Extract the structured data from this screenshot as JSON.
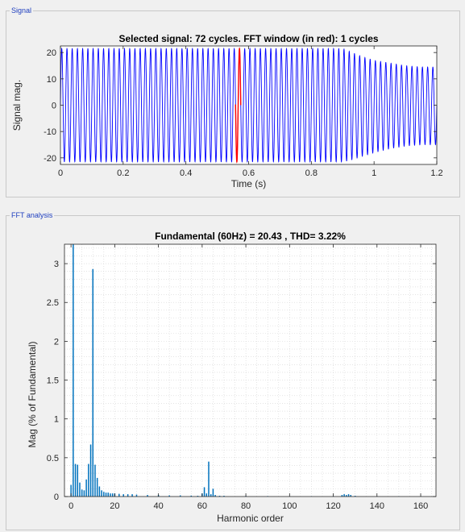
{
  "signal_panel": {
    "legend": "Signal"
  },
  "fft_panel": {
    "legend": "FFT analysis"
  },
  "chart_data": [
    {
      "type": "line",
      "title": "Selected signal: 72 cycles. FFT window (in red): 1 cycles",
      "xlabel": "Time (s)",
      "ylabel": "Signal mag.",
      "xlim": [
        0,
        1.2
      ],
      "ylim": [
        -22.5,
        22.5
      ],
      "xticks": [
        0,
        0.2,
        0.4,
        0.6,
        0.8,
        1,
        1.2
      ],
      "xtick_labels": [
        "0",
        "0.2",
        "0.4",
        "0.6",
        "0.8",
        "1",
        "1.2"
      ],
      "yticks": [
        -20,
        -10,
        0,
        10,
        20
      ],
      "ytick_labels": [
        "-20",
        "-10",
        "0",
        "10",
        "20"
      ],
      "grid": false,
      "series": [
        {
          "color": "#0000ff",
          "frequency_hz": 60,
          "duration_s": 1.2,
          "envelope": {
            "t": [
              0,
              0.9,
              0.92,
              0.96,
              1.0,
              1.05,
              1.1,
              1.15,
              1.2
            ],
            "upper": [
              21.5,
              21.5,
              20.5,
              18.5,
              17.0,
              16.0,
              15.0,
              14.5,
              14.5
            ],
            "lower": [
              -21.5,
              -21.5,
              -21.0,
              -19.5,
              -18.0,
              -16.5,
              -15.5,
              -15.0,
              -15.0
            ]
          }
        },
        {
          "color": "#ff0000",
          "t_start": 0.5583,
          "t_end": 0.575,
          "frequency_hz": 60
        }
      ]
    },
    {
      "type": "bar",
      "title": "Fundamental (60Hz) = 20.43 , THD= 3.22%",
      "xlabel": "Harmonic order",
      "ylabel": "Mag (% of Fundamental)",
      "xlim": [
        -3,
        167
      ],
      "ylim": [
        0,
        3.25
      ],
      "xticks": [
        0,
        20,
        40,
        60,
        80,
        100,
        120,
        140,
        160
      ],
      "xtick_labels": [
        "0",
        "20",
        "40",
        "60",
        "80",
        "100",
        "120",
        "140",
        "160"
      ],
      "yticks": [
        0,
        0.5,
        1,
        1.5,
        2,
        2.5,
        3
      ],
      "ytick_labels": [
        "0",
        "0.5",
        "1",
        "1.5",
        "2",
        "2.5",
        "3"
      ],
      "grid": true,
      "bar_color": "#0072bd",
      "x": [
        0,
        1,
        2,
        3,
        4,
        5,
        6,
        7,
        8,
        9,
        10,
        11,
        12,
        13,
        14,
        15,
        16,
        17,
        18,
        19,
        20,
        22,
        24,
        26,
        28,
        30,
        35,
        40,
        45,
        50,
        55,
        58,
        60,
        61,
        62,
        63,
        64,
        65,
        66,
        68,
        70,
        80,
        90,
        100,
        110,
        120,
        124,
        125,
        126,
        127,
        128,
        130,
        140,
        150,
        160
      ],
      "values": [
        0.15,
        3.25,
        0.42,
        0.41,
        0.18,
        0.09,
        0.08,
        0.22,
        0.42,
        0.67,
        2.93,
        0.41,
        0.24,
        0.13,
        0.08,
        0.06,
        0.05,
        0.05,
        0.04,
        0.04,
        0.04,
        0.035,
        0.03,
        0.03,
        0.03,
        0.025,
        0.02,
        0.02,
        0.015,
        0.015,
        0.012,
        0.01,
        0.04,
        0.12,
        0.04,
        0.45,
        0.03,
        0.1,
        0.02,
        0.01,
        0.01,
        0.008,
        0.006,
        0.005,
        0.005,
        0.006,
        0.02,
        0.03,
        0.02,
        0.03,
        0.02,
        0.01,
        0.005,
        0.004,
        0.003
      ]
    }
  ]
}
